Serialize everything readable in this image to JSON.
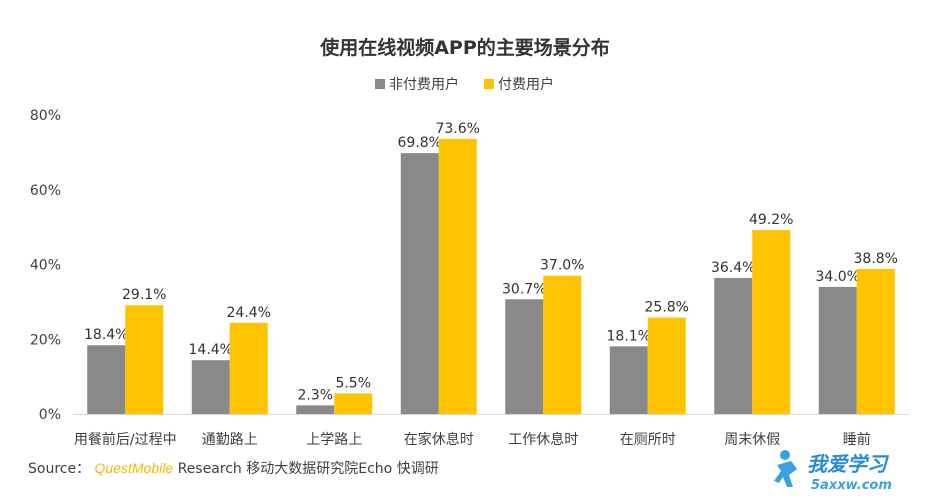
{
  "chart_data": {
    "type": "bar",
    "title": "使用在线视频APP的主要场景分布",
    "categories": [
      "用餐前后/过程中",
      "通勤路上",
      "上学路上",
      "在家休息时",
      "工作休息时",
      "在厕所时",
      "周末休假",
      "睡前"
    ],
    "series": [
      {
        "name": "非付费用户",
        "color": "#898989",
        "values": [
          18.4,
          14.4,
          2.3,
          69.8,
          30.7,
          18.1,
          36.4,
          34.0
        ],
        "labels": [
          "18.4%",
          "14.4%",
          "2.3%",
          "69.8%",
          "30.7%",
          "18.1%",
          "36.4%",
          "34.0%"
        ]
      },
      {
        "name": "付费用户",
        "color": "#ffc400",
        "values": [
          29.1,
          24.4,
          5.5,
          73.6,
          37.0,
          25.8,
          49.2,
          38.8
        ],
        "labels": [
          "29.1%",
          "24.4%",
          "5.5%",
          "73.6%",
          "37.0%",
          "25.8%",
          "49.2%",
          "38.8%"
        ]
      }
    ],
    "ylim": [
      0,
      80
    ],
    "yticks": [
      "0%",
      "20%",
      "40%",
      "60%",
      "80%"
    ],
    "ytick_values": [
      0,
      20,
      40,
      60,
      80
    ],
    "grid": false,
    "legend": "top-center",
    "xlabel": "",
    "ylabel": ""
  },
  "source": {
    "prefix": "Source：",
    "brand": "QuestMobile",
    "suffix": " Research 移动大数据研究院Echo 快调研"
  },
  "watermark": {
    "text": "我爱学习",
    "domain": "5axxw.com"
  }
}
